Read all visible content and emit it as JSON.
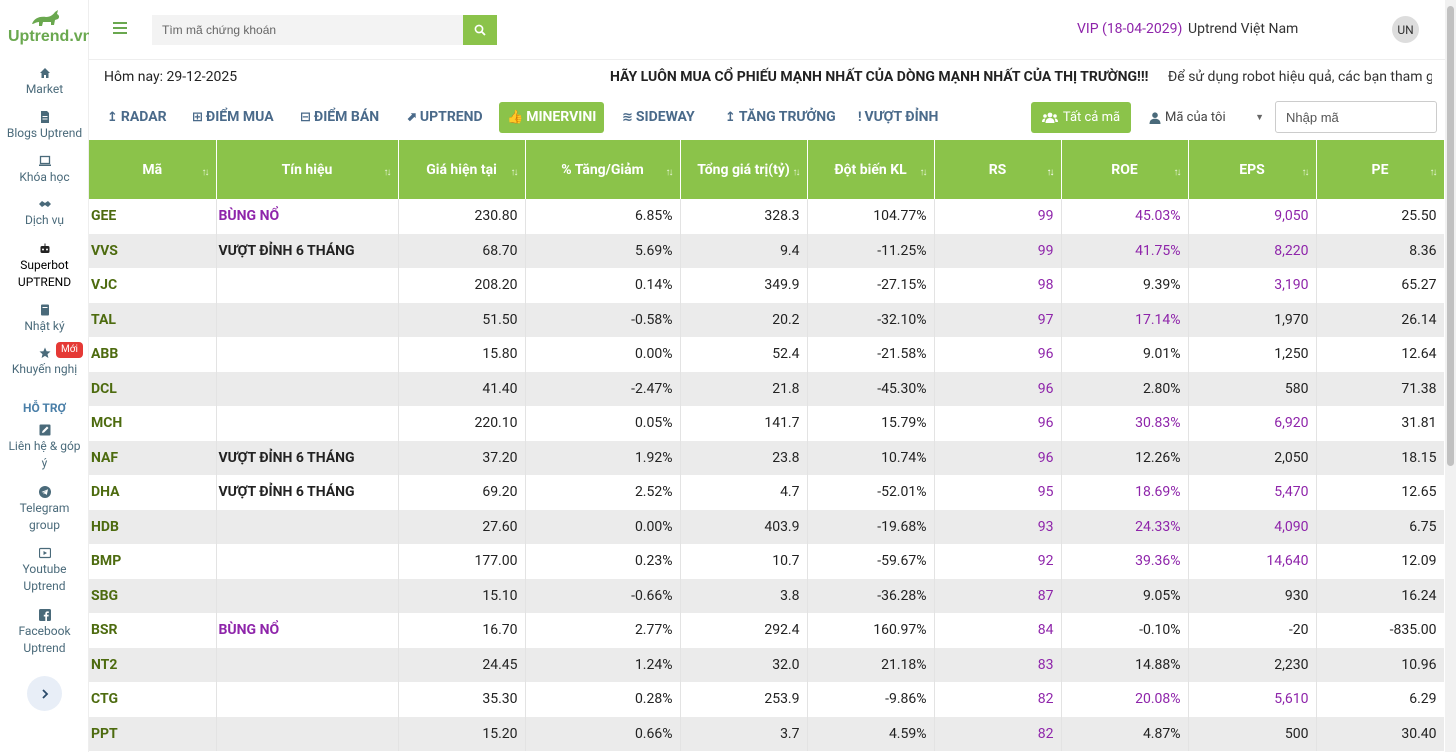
{
  "brand": {
    "name": "Uptrend.vn"
  },
  "sidebar": {
    "items": [
      {
        "label": "Market",
        "icon": "home-icon"
      },
      {
        "label": "Blogs Uptrend",
        "icon": "document-icon"
      },
      {
        "label": "Khóa học",
        "icon": "laptop-icon"
      },
      {
        "label": "Dịch vụ",
        "icon": "handshake-icon"
      },
      {
        "label": "Superbot UPTREND",
        "icon": "robot-icon"
      },
      {
        "label": "Nhật ký",
        "icon": "book-icon"
      },
      {
        "label": "Khuyến nghị",
        "icon": "star-icon"
      },
      {
        "label": "Liên hệ & góp ý",
        "icon": "edit-icon"
      },
      {
        "label": "Telegram group",
        "icon": "telegram-icon"
      },
      {
        "label": "Youtube Uptrend",
        "icon": "youtube-icon"
      },
      {
        "label": "Facebook Uptrend",
        "icon": "facebook-icon"
      }
    ],
    "new_badge": "Mới",
    "support_title": "HỖ TRỢ"
  },
  "header": {
    "search_placeholder": "Tìm mã chứng khoán",
    "vip": "VIP (18-04-2029)",
    "username": "Uptrend Việt Nam",
    "avatar": "UN"
  },
  "info": {
    "today": "Hôm nay: 29-12-2025",
    "ticker_bold": "HÃY LUÔN MUA CỔ PHIẾU MẠNH NHẤT CỦA DÒNG MẠNH NHẤT CỦA THỊ TRƯỜNG!!!",
    "ticker_rest": "Để sử dụng robot hiệu quả, các bạn tham gia"
  },
  "tabs": [
    {
      "label": "RADAR",
      "icon": "↥"
    },
    {
      "label": "ĐIỂM MUA",
      "icon": "⊞"
    },
    {
      "label": "ĐIỂM BÁN",
      "icon": "⊟"
    },
    {
      "label": "UPTREND",
      "icon": "⬈"
    },
    {
      "label": "MINERVINI",
      "icon": "👍"
    },
    {
      "label": "SIDEWAY",
      "icon": "≋"
    },
    {
      "label": "TĂNG TRƯỞNG",
      "icon": "↥"
    },
    {
      "label": "VƯỢT ĐỈNH",
      "icon": "!"
    }
  ],
  "filters": {
    "all_label": "Tất cả mã",
    "my_codes_label": "Mã của tôi",
    "code_placeholder": "Nhập mã"
  },
  "table": {
    "columns": [
      "Mã",
      "Tín hiệu",
      "Giá hiện tại",
      "% Tăng/Giảm",
      "Tổng giá trị(tỷ)",
      "Đột biến KL",
      "RS",
      "ROE",
      "EPS",
      "PE"
    ],
    "rows": [
      {
        "code": "GEE",
        "signal": "BÙNG NỔ",
        "signal_purple": true,
        "price": "230.80",
        "change": "6.85%",
        "value": "328.3",
        "volume": "104.77%",
        "rs": "99",
        "roe": "45.03%",
        "roe_purple": true,
        "eps": "9,050",
        "eps_purple": true,
        "pe": "25.50"
      },
      {
        "code": "VVS",
        "signal": "VƯỢT ĐỈNH 6 THÁNG",
        "signal_purple": false,
        "price": "68.70",
        "change": "5.69%",
        "value": "9.4",
        "volume": "-11.25%",
        "rs": "99",
        "roe": "41.75%",
        "roe_purple": true,
        "eps": "8,220",
        "eps_purple": true,
        "pe": "8.36"
      },
      {
        "code": "VJC",
        "signal": "",
        "signal_purple": false,
        "price": "208.20",
        "change": "0.14%",
        "value": "349.9",
        "volume": "-27.15%",
        "rs": "98",
        "roe": "9.39%",
        "roe_purple": false,
        "eps": "3,190",
        "eps_purple": true,
        "pe": "65.27"
      },
      {
        "code": "TAL",
        "signal": "",
        "signal_purple": false,
        "price": "51.50",
        "change": "-0.58%",
        "value": "20.2",
        "volume": "-32.10%",
        "rs": "97",
        "roe": "17.14%",
        "roe_purple": true,
        "eps": "1,970",
        "eps_purple": false,
        "pe": "26.14"
      },
      {
        "code": "ABB",
        "signal": "",
        "signal_purple": false,
        "price": "15.80",
        "change": "0.00%",
        "value": "52.4",
        "volume": "-21.58%",
        "rs": "96",
        "roe": "9.01%",
        "roe_purple": false,
        "eps": "1,250",
        "eps_purple": false,
        "pe": "12.64"
      },
      {
        "code": "DCL",
        "signal": "",
        "signal_purple": false,
        "price": "41.40",
        "change": "-2.47%",
        "value": "21.8",
        "volume": "-45.30%",
        "rs": "96",
        "roe": "2.80%",
        "roe_purple": false,
        "eps": "580",
        "eps_purple": false,
        "pe": "71.38"
      },
      {
        "code": "MCH",
        "signal": "",
        "signal_purple": false,
        "price": "220.10",
        "change": "0.05%",
        "value": "141.7",
        "volume": "15.79%",
        "rs": "96",
        "roe": "30.83%",
        "roe_purple": true,
        "eps": "6,920",
        "eps_purple": true,
        "pe": "31.81"
      },
      {
        "code": "NAF",
        "signal": "VƯỢT ĐỈNH 6 THÁNG",
        "signal_purple": false,
        "price": "37.20",
        "change": "1.92%",
        "value": "23.8",
        "volume": "10.74%",
        "rs": "96",
        "roe": "12.26%",
        "roe_purple": false,
        "eps": "2,050",
        "eps_purple": false,
        "pe": "18.15"
      },
      {
        "code": "DHA",
        "signal": "VƯỢT ĐỈNH 6 THÁNG",
        "signal_purple": false,
        "price": "69.20",
        "change": "2.52%",
        "value": "4.7",
        "volume": "-52.01%",
        "rs": "95",
        "roe": "18.69%",
        "roe_purple": true,
        "eps": "5,470",
        "eps_purple": true,
        "pe": "12.65"
      },
      {
        "code": "HDB",
        "signal": "",
        "signal_purple": false,
        "price": "27.60",
        "change": "0.00%",
        "value": "403.9",
        "volume": "-19.68%",
        "rs": "93",
        "roe": "24.33%",
        "roe_purple": true,
        "eps": "4,090",
        "eps_purple": true,
        "pe": "6.75"
      },
      {
        "code": "BMP",
        "signal": "",
        "signal_purple": false,
        "price": "177.00",
        "change": "0.23%",
        "value": "10.7",
        "volume": "-59.67%",
        "rs": "92",
        "roe": "39.36%",
        "roe_purple": true,
        "eps": "14,640",
        "eps_purple": true,
        "pe": "12.09"
      },
      {
        "code": "SBG",
        "signal": "",
        "signal_purple": false,
        "price": "15.10",
        "change": "-0.66%",
        "value": "3.8",
        "volume": "-36.28%",
        "rs": "87",
        "roe": "9.05%",
        "roe_purple": false,
        "eps": "930",
        "eps_purple": false,
        "pe": "16.24"
      },
      {
        "code": "BSR",
        "signal": "BÙNG NỔ",
        "signal_purple": true,
        "price": "16.70",
        "change": "2.77%",
        "value": "292.4",
        "volume": "160.97%",
        "rs": "84",
        "roe": "-0.10%",
        "roe_purple": false,
        "eps": "-20",
        "eps_purple": false,
        "pe": "-835.00"
      },
      {
        "code": "NT2",
        "signal": "",
        "signal_purple": false,
        "price": "24.45",
        "change": "1.24%",
        "value": "32.0",
        "volume": "21.18%",
        "rs": "83",
        "roe": "14.88%",
        "roe_purple": false,
        "eps": "2,230",
        "eps_purple": false,
        "pe": "10.96"
      },
      {
        "code": "CTG",
        "signal": "",
        "signal_purple": false,
        "price": "35.30",
        "change": "0.28%",
        "value": "253.9",
        "volume": "-9.86%",
        "rs": "82",
        "roe": "20.08%",
        "roe_purple": true,
        "eps": "5,610",
        "eps_purple": true,
        "pe": "6.29"
      },
      {
        "code": "PPT",
        "signal": "",
        "signal_purple": false,
        "price": "15.20",
        "change": "0.66%",
        "value": "3.7",
        "volume": "4.59%",
        "rs": "82",
        "roe": "4.87%",
        "roe_purple": false,
        "eps": "500",
        "eps_purple": false,
        "pe": "30.40"
      }
    ]
  },
  "colors": {
    "accent_green": "#8bc34a",
    "code_green": "#4d6b0f",
    "purple": "#8e24aa",
    "badge_red": "#e53935"
  }
}
